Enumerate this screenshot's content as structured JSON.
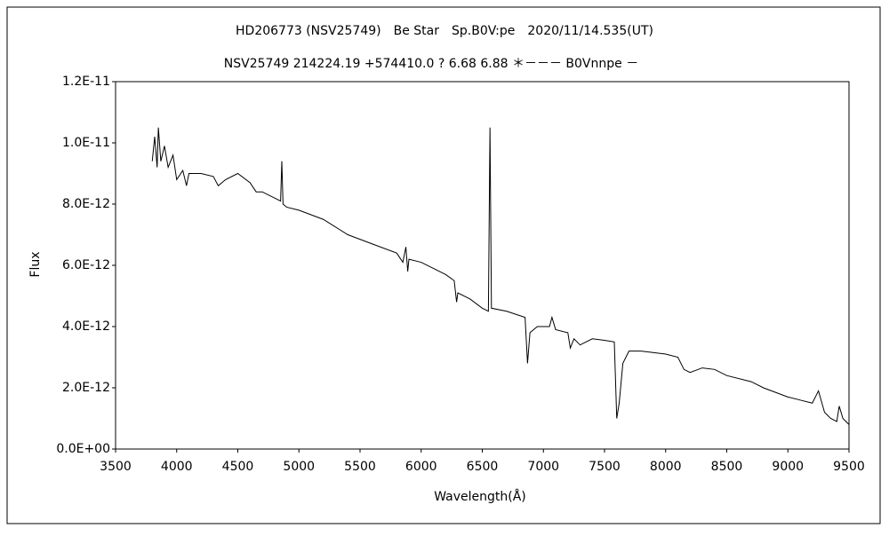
{
  "chart_data": {
    "type": "line",
    "title": "HD206773 (NSV25749)　Be Star　Sp.B0V:pe　2020/11/14.535(UT)",
    "subtitle": "NSV25749 214224.19 +574410.0 ? 6.68 6.88 ＊－－－ B0Vnnpe －",
    "x_label": "Wavelength(Å)",
    "y_label": "Flux",
    "xlim": [
      3500,
      9500
    ],
    "xticks": [
      3500,
      4000,
      4500,
      5000,
      5500,
      6000,
      6500,
      7000,
      7500,
      8000,
      8500,
      9000,
      9500
    ],
    "ylim": [
      0,
      1.2e-11
    ],
    "yticks": [
      {
        "value": 0,
        "label": "0.0E+00"
      },
      {
        "value": 2e-12,
        "label": "2.0E-12"
      },
      {
        "value": 4e-12,
        "label": "4.0E-12"
      },
      {
        "value": 6e-12,
        "label": "6.0E-12"
      },
      {
        "value": 8e-12,
        "label": "8.0E-12"
      },
      {
        "value": 1e-11,
        "label": "1.0E-11"
      },
      {
        "value": 1.2e-11,
        "label": "1.2E-11"
      }
    ],
    "grid": false,
    "x": [
      3800,
      3820,
      3840,
      3850,
      3870,
      3900,
      3930,
      3970,
      4000,
      4050,
      4080,
      4100,
      4200,
      4300,
      4340,
      4400,
      4500,
      4600,
      4650,
      4700,
      4800,
      4850,
      4860,
      4870,
      4900,
      5000,
      5200,
      5400,
      5600,
      5800,
      5850,
      5875,
      5890,
      5900,
      6000,
      6200,
      6270,
      6290,
      6300,
      6400,
      6500,
      6550,
      6563,
      6575,
      6700,
      6850,
      6870,
      6890,
      6950,
      7050,
      7070,
      7100,
      7200,
      7220,
      7250,
      7300,
      7400,
      7500,
      7580,
      7600,
      7620,
      7650,
      7700,
      7800,
      8000,
      8100,
      8150,
      8200,
      8300,
      8400,
      8500,
      8700,
      8800,
      9000,
      9100,
      9200,
      9250,
      9300,
      9350,
      9400,
      9420,
      9450,
      9500
    ],
    "series": [
      {
        "name": "Flux",
        "color": "#000000",
        "values": [
          9.4e-12,
          1.02e-11,
          9.2e-12,
          1.05e-11,
          9.4e-12,
          9.9e-12,
          9.2e-12,
          9.6e-12,
          8.8e-12,
          9.1e-12,
          8.6e-12,
          9e-12,
          9e-12,
          8.9e-12,
          8.6e-12,
          8.8e-12,
          9e-12,
          8.7e-12,
          8.4e-12,
          8.4e-12,
          8.2e-12,
          8.1e-12,
          9.4e-12,
          8e-12,
          7.9e-12,
          7.8e-12,
          7.5e-12,
          7e-12,
          6.7e-12,
          6.4e-12,
          6.1e-12,
          6.6e-12,
          5.8e-12,
          6.2e-12,
          6.1e-12,
          5.7e-12,
          5.5e-12,
          4.8e-12,
          5.1e-12,
          4.9e-12,
          4.6e-12,
          4.5e-12,
          1.05e-11,
          4.6e-12,
          4.5e-12,
          4.3e-12,
          2.8e-12,
          3.8e-12,
          4e-12,
          4e-12,
          4.3e-12,
          3.9e-12,
          3.8e-12,
          3.3e-12,
          3.6e-12,
          3.4e-12,
          3.6e-12,
          3.55e-12,
          3.5e-12,
          1e-12,
          1.5e-12,
          2.8e-12,
          3.2e-12,
          3.2e-12,
          3.1e-12,
          3e-12,
          2.6e-12,
          2.5e-12,
          2.65e-12,
          2.6e-12,
          2.4e-12,
          2.2e-12,
          2e-12,
          1.7e-12,
          1.6e-12,
          1.5e-12,
          1.9e-12,
          1.2e-12,
          1e-12,
          9e-13,
          1.4e-12,
          1e-12,
          8e-13
        ]
      }
    ]
  }
}
